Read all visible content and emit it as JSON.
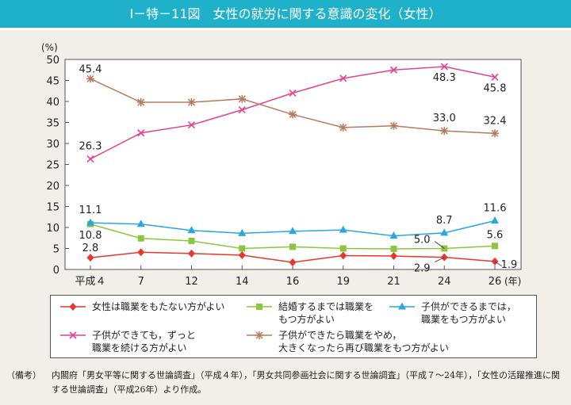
{
  "title": "Ⅰ－特－11図　女性の就労に関する意識の変化（女性）",
  "chart_data": {
    "type": "line",
    "ylabel": "(%)",
    "xunit": "(年)",
    "ylim": [
      0,
      50
    ],
    "yticks": [
      0,
      5,
      10,
      15,
      20,
      25,
      30,
      35,
      40,
      45,
      50
    ],
    "categories": [
      "平成４",
      "7",
      "12",
      "14",
      "16",
      "19",
      "21",
      "24",
      "26"
    ],
    "grid": false,
    "legend": "bottom",
    "series": [
      {
        "name": "女性は職業をもたない方がよい",
        "color": "#e8372e",
        "marker": "diamond",
        "values": [
          2.8,
          4.1,
          3.8,
          3.4,
          1.7,
          3.3,
          3.2,
          2.9,
          1.9
        ]
      },
      {
        "name": "結婚するまでは職業をもつ方がよい",
        "color": "#8cc63f",
        "marker": "square",
        "values": [
          10.8,
          7.4,
          6.8,
          5.0,
          5.4,
          5.0,
          4.9,
          5.0,
          5.6
        ]
      },
      {
        "name": "子供ができるまでは，職業をもつ方がよい",
        "color": "#29a7e1",
        "marker": "triangle",
        "values": [
          11.1,
          10.8,
          9.3,
          8.6,
          9.1,
          9.4,
          8.0,
          8.7,
          11.6
        ]
      },
      {
        "name": "子供ができても，ずっと職業を続ける方がよい",
        "color": "#e4428f",
        "marker": "x",
        "values": [
          26.3,
          32.5,
          34.4,
          38.0,
          42.0,
          45.5,
          47.5,
          48.3,
          45.8
        ]
      },
      {
        "name": "子供ができたら職業をやめ，大きくなったら再び職業をもつ方がよい",
        "color": "#b67b5e",
        "marker": "asterisk",
        "values": [
          45.4,
          39.8,
          39.8,
          40.6,
          36.9,
          33.8,
          34.2,
          33.0,
          32.4
        ]
      }
    ],
    "data_labels": [
      {
        "series": 0,
        "index": 0,
        "text": "2.8"
      },
      {
        "series": 0,
        "index": 7,
        "text": "2.9"
      },
      {
        "series": 0,
        "index": 8,
        "text": "1.9"
      },
      {
        "series": 1,
        "index": 0,
        "text": "10.8"
      },
      {
        "series": 1,
        "index": 7,
        "text": "5.0"
      },
      {
        "series": 1,
        "index": 8,
        "text": "5.6"
      },
      {
        "series": 2,
        "index": 0,
        "text": "11.1"
      },
      {
        "series": 2,
        "index": 7,
        "text": "8.7"
      },
      {
        "series": 2,
        "index": 8,
        "text": "11.6"
      },
      {
        "series": 3,
        "index": 0,
        "text": "26.3"
      },
      {
        "series": 3,
        "index": 7,
        "text": "48.3"
      },
      {
        "series": 3,
        "index": 8,
        "text": "45.8"
      },
      {
        "series": 4,
        "index": 0,
        "text": "45.4"
      },
      {
        "series": 4,
        "index": 7,
        "text": "33.0"
      },
      {
        "series": 4,
        "index": 8,
        "text": "32.4"
      }
    ]
  },
  "legend": {
    "items": [
      {
        "line1": "女性は職業をもたない方がよい",
        "line2": ""
      },
      {
        "line1": "結婚するまでは職業を",
        "line2": "もつ方がよい"
      },
      {
        "line1": "子供ができるまでは，",
        "line2": "職業をもつ方がよい"
      },
      {
        "line1": "子供ができても，ずっと",
        "line2": "職業を続ける方がよい"
      },
      {
        "line1": "子供ができたら職業をやめ，",
        "line2": "大きくなったら再び職業をもつ方がよい"
      }
    ]
  },
  "note": {
    "label": "（備考）",
    "text": "内閣府「男女平等に関する世論調査」（平成４年），「男女共同参画社会に関する世論調査」（平成７～24年），「女性の活躍推進に関する世論調査」（平成26年）より作成。"
  }
}
